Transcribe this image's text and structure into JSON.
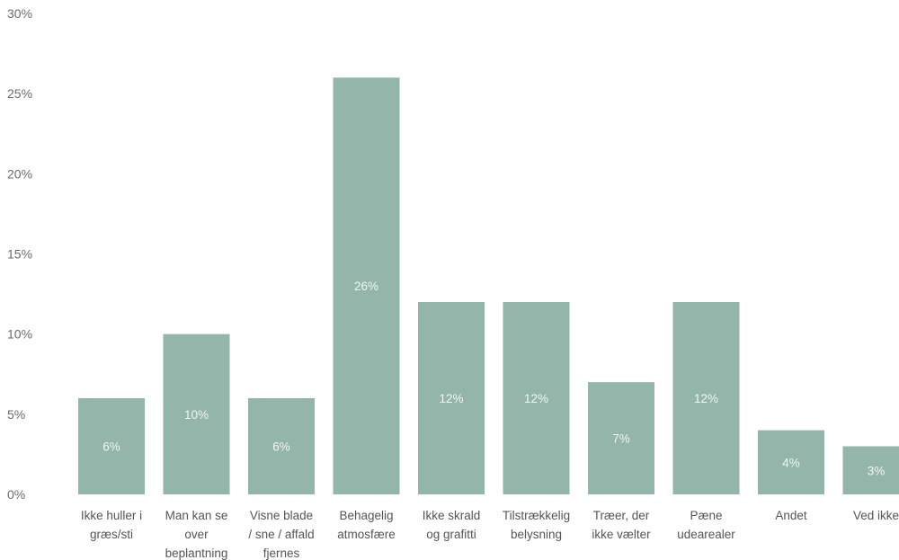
{
  "chart_data": {
    "type": "bar",
    "title": "",
    "xlabel": "",
    "ylabel": "",
    "ylim": [
      0,
      30
    ],
    "y_ticks": [
      "0%",
      "5%",
      "10%",
      "15%",
      "20%",
      "25%",
      "30%"
    ],
    "y_tick_values": [
      0,
      5,
      10,
      15,
      20,
      25,
      30
    ],
    "grid": false,
    "bar_color": "#93b5aa",
    "categories": [
      [
        "Ikke huller i",
        "græs/sti"
      ],
      [
        "Man kan se",
        "over",
        "beplantning"
      ],
      [
        "Visne blade",
        "/ sne / affald",
        "fjernes"
      ],
      [
        "Behagelig",
        "atmosfære"
      ],
      [
        "Ikke skrald",
        "og grafitti"
      ],
      [
        "Tilstrækkelig",
        "belysning"
      ],
      [
        "Træer, der",
        "ikke vælter"
      ],
      [
        "Pæne",
        "udearealer"
      ],
      [
        "Andet"
      ],
      [
        "Ved ikke"
      ]
    ],
    "values": [
      6,
      10,
      6,
      26,
      12,
      12,
      7,
      12,
      4,
      3
    ],
    "data_labels": [
      "6%",
      "10%",
      "6%",
      "26%",
      "12%",
      "12%",
      "7%",
      "12%",
      "4%",
      "3%"
    ]
  }
}
